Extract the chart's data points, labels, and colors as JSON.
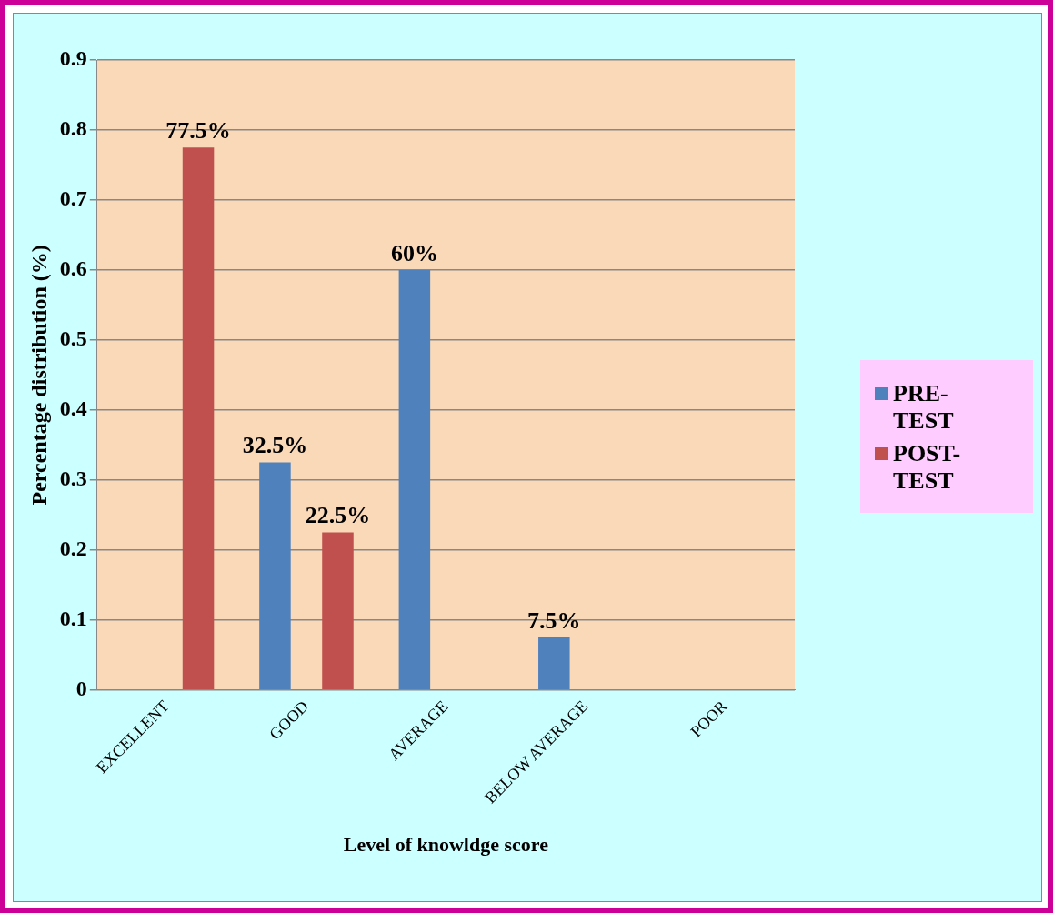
{
  "chart_data": {
    "type": "bar",
    "xlabel": "Level of knowldge score",
    "ylabel": "Percentage distribution (%)",
    "categories": [
      "EXCELLENT",
      "GOOD",
      "AVERAGE",
      "BELOW AVERAGE",
      "POOR"
    ],
    "series": [
      {
        "name": "PRE-TEST",
        "color": "#4f81bd",
        "values": [
          0,
          0.325,
          0.6,
          0.075,
          0
        ],
        "value_labels": [
          null,
          "32.5%",
          "60%",
          "7.5%",
          null
        ]
      },
      {
        "name": "POST-TEST",
        "color": "#c0504d",
        "values": [
          0.775,
          0.225,
          0,
          0,
          0
        ],
        "value_labels": [
          "77.5%",
          "22.5%",
          null,
          null,
          null
        ]
      }
    ],
    "ylim": [
      0,
      0.9
    ],
    "yticks": [
      0,
      0.1,
      0.2,
      0.3,
      0.4,
      0.5,
      0.6,
      0.7,
      0.8,
      0.9
    ],
    "grid": "y",
    "legend": "right"
  }
}
